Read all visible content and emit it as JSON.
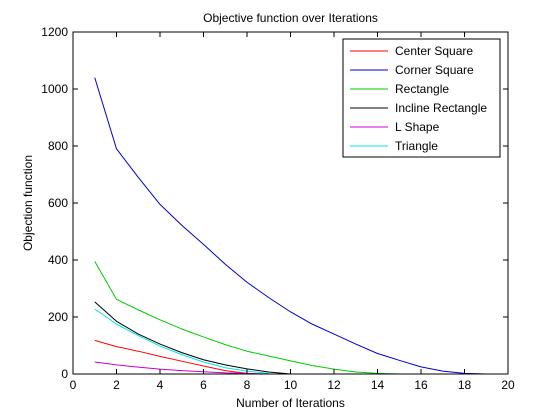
{
  "chart_data": {
    "type": "line",
    "title": "Objective function over Iterations",
    "xlabel": "Number of Iterations",
    "ylabel": "Objection function",
    "xlim": [
      0,
      20
    ],
    "ylim": [
      0,
      1200
    ],
    "xticks": [
      0,
      2,
      4,
      6,
      8,
      10,
      12,
      14,
      16,
      18,
      20
    ],
    "yticks": [
      0,
      200,
      400,
      600,
      800,
      1000,
      1200
    ],
    "grid": false,
    "legend_position": "top-right",
    "series": [
      {
        "name": "Center Square",
        "color": "#ff0000",
        "x": [
          1,
          2,
          3,
          4,
          5,
          6,
          7,
          8
        ],
        "y": [
          118,
          96,
          80,
          62,
          45,
          28,
          12,
          2
        ]
      },
      {
        "name": "Corner Square",
        "color": "#0000cc",
        "x": [
          1,
          2,
          3,
          4,
          5,
          6,
          7,
          8,
          9,
          10,
          11,
          12,
          13,
          14,
          15,
          16,
          17,
          18,
          19,
          20
        ],
        "y": [
          1040,
          790,
          690,
          595,
          522,
          455,
          385,
          322,
          268,
          218,
          175,
          140,
          105,
          72,
          48,
          25,
          10,
          2,
          0,
          0
        ]
      },
      {
        "name": "Rectangle",
        "color": "#00cc00",
        "x": [
          1,
          2,
          3,
          4,
          5,
          6,
          7,
          8,
          9,
          10,
          11,
          12,
          13,
          14,
          15
        ],
        "y": [
          395,
          262,
          225,
          190,
          158,
          130,
          103,
          80,
          63,
          46,
          30,
          17,
          7,
          2,
          0
        ]
      },
      {
        "name": "Incline Rectangle",
        "color": "#000000",
        "x": [
          1,
          2,
          3,
          4,
          5,
          6,
          7,
          8,
          9,
          10
        ],
        "y": [
          253,
          185,
          140,
          105,
          75,
          50,
          32,
          18,
          7,
          0
        ]
      },
      {
        "name": "L Shape",
        "color": "#cc00cc",
        "x": [
          1,
          2,
          3,
          4,
          5,
          6,
          7,
          8,
          9
        ],
        "y": [
          42,
          32,
          24,
          17,
          12,
          8,
          4,
          2,
          0
        ]
      },
      {
        "name": "Triangle",
        "color": "#00e5e5",
        "x": [
          1,
          2,
          3,
          4,
          5,
          6,
          7,
          8,
          9
        ],
        "y": [
          228,
          175,
          135,
          98,
          68,
          42,
          22,
          10,
          2
        ]
      }
    ]
  }
}
